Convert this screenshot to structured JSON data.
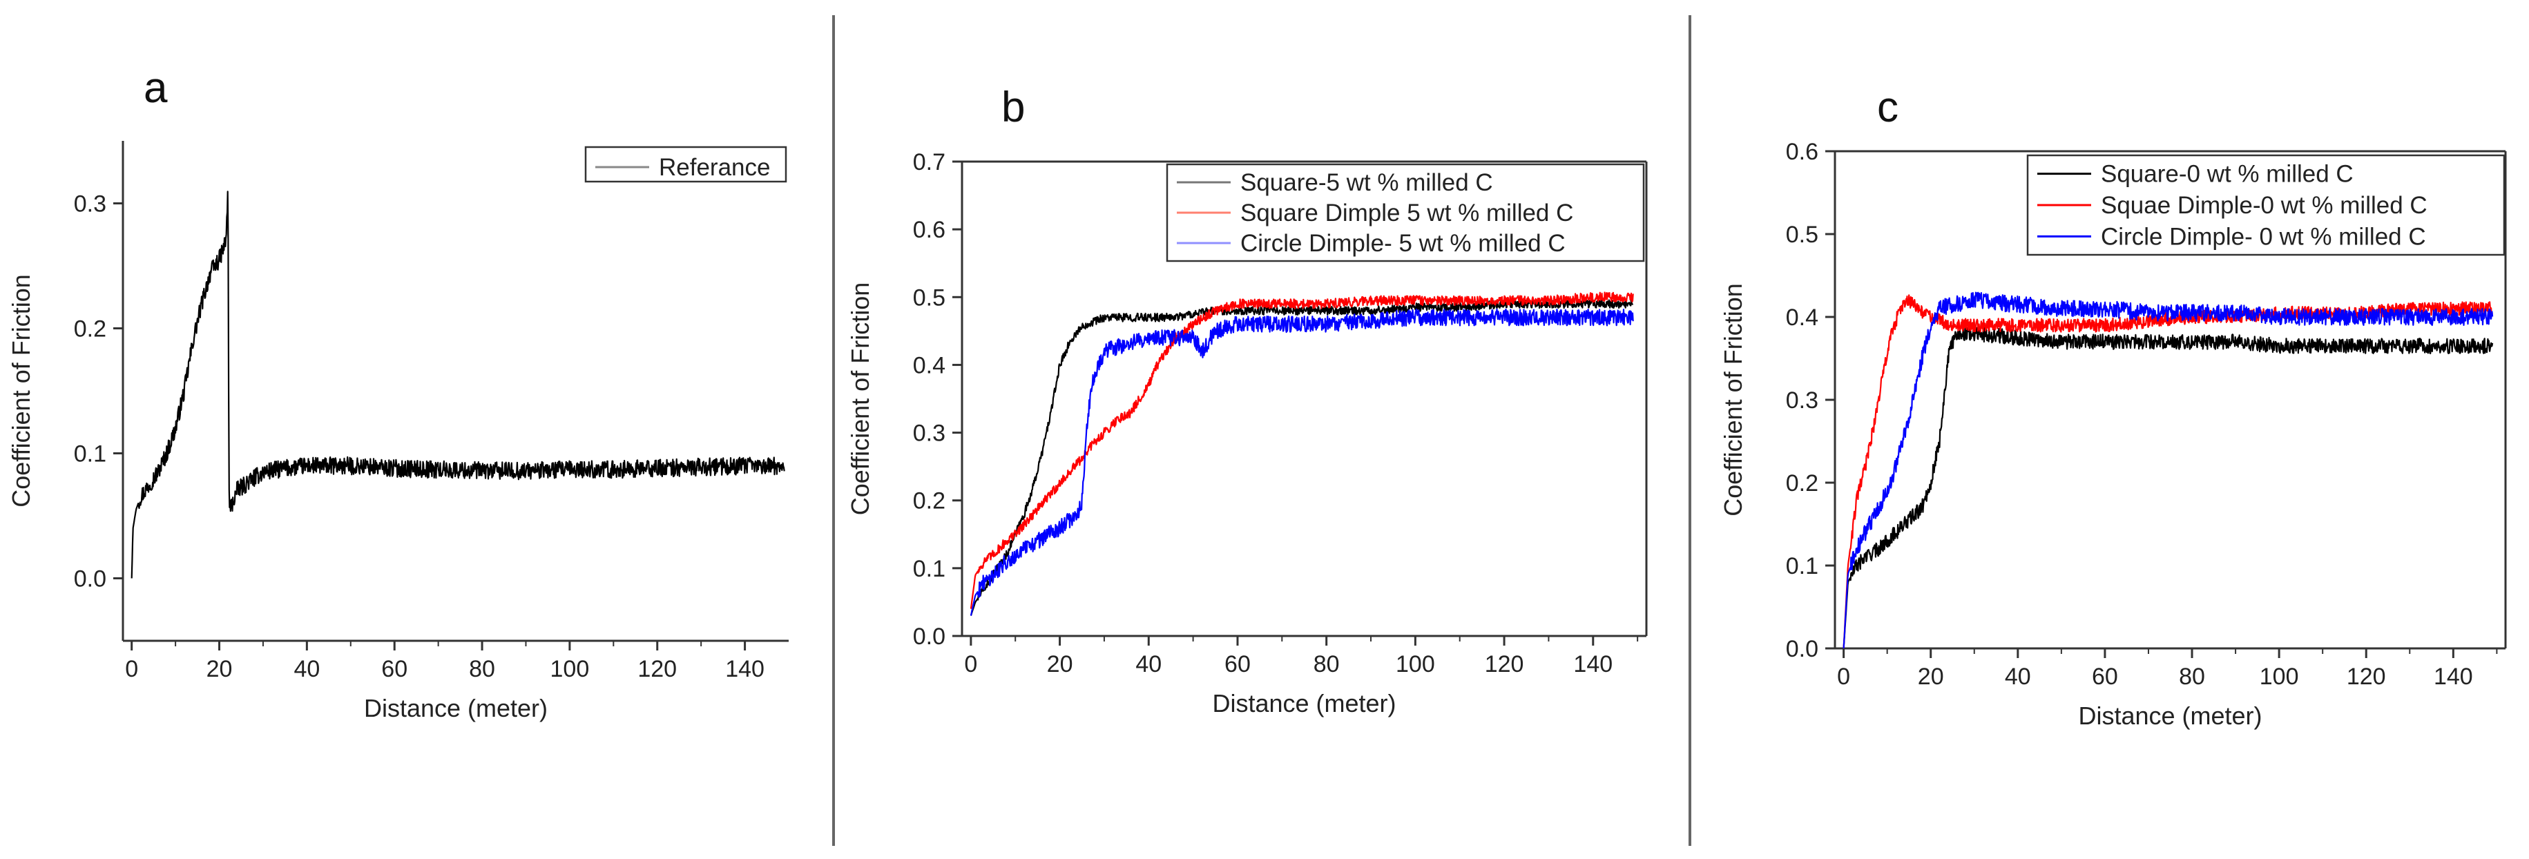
{
  "figure": {
    "panels": [
      {
        "id": "a",
        "letter": "a"
      },
      {
        "id": "b",
        "letter": "b"
      },
      {
        "id": "c",
        "letter": "c"
      }
    ]
  },
  "chart_data": [
    {
      "type": "line",
      "panel": "a",
      "title": "",
      "xlabel": "Distance (meter)",
      "ylabel": "Coefficient of Friction",
      "xlim": [
        -2,
        150
      ],
      "ylim": [
        -0.05,
        0.35
      ],
      "xticks": [
        0,
        20,
        40,
        60,
        80,
        100,
        120,
        140
      ],
      "yticks": [
        0.0,
        0.1,
        0.2,
        0.3
      ],
      "ytick_labels": [
        "0.0",
        "0.1",
        "0.2",
        "0.3"
      ],
      "grid": false,
      "legend_position": "top-right",
      "series": [
        {
          "name": "Referance",
          "color": "#000000",
          "legend_color": "#888888",
          "noise": 0.007,
          "x": [
            0,
            0.3,
            1,
            2,
            4,
            6,
            8,
            10,
            12,
            14,
            16,
            18,
            20,
            21.5,
            22,
            22.2,
            22.5,
            24,
            27,
            30,
            35,
            40,
            50,
            60,
            70,
            80,
            90,
            100,
            110,
            120,
            130,
            140,
            149
          ],
          "values": [
            0.0,
            0.04,
            0.055,
            0.065,
            0.075,
            0.085,
            0.1,
            0.12,
            0.15,
            0.19,
            0.22,
            0.245,
            0.255,
            0.27,
            0.31,
            0.07,
            0.055,
            0.07,
            0.078,
            0.085,
            0.088,
            0.09,
            0.09,
            0.088,
            0.087,
            0.086,
            0.086,
            0.087,
            0.087,
            0.088,
            0.089,
            0.09,
            0.09
          ]
        }
      ]
    },
    {
      "type": "line",
      "panel": "b",
      "title": "",
      "xlabel": "Distance (meter)",
      "ylabel": "Coefficient of Friction",
      "xlim": [
        -2,
        152
      ],
      "ylim": [
        0.0,
        0.7
      ],
      "xticks": [
        0,
        20,
        40,
        60,
        80,
        100,
        120,
        140
      ],
      "yticks": [
        0.0,
        0.1,
        0.2,
        0.3,
        0.4,
        0.5,
        0.6,
        0.7
      ],
      "ytick_labels": [
        "0.0",
        "0.1",
        "0.2",
        "0.3",
        "0.4",
        "0.5",
        "0.6",
        "0.7"
      ],
      "grid": false,
      "legend_position": "top-right",
      "series": [
        {
          "name": "Square-5 wt % milled C",
          "color": "#000000",
          "legend_color": "#777777",
          "noise": 0.006,
          "x": [
            0,
            1,
            3,
            5,
            8,
            10,
            12,
            14,
            16,
            18,
            20,
            22,
            24,
            26,
            28,
            30,
            35,
            40,
            45,
            50,
            55,
            60,
            70,
            80,
            90,
            100,
            110,
            120,
            130,
            140,
            149
          ],
          "values": [
            0.03,
            0.05,
            0.07,
            0.09,
            0.12,
            0.15,
            0.18,
            0.22,
            0.27,
            0.33,
            0.4,
            0.43,
            0.45,
            0.46,
            0.465,
            0.47,
            0.47,
            0.47,
            0.47,
            0.475,
            0.48,
            0.48,
            0.48,
            0.48,
            0.48,
            0.485,
            0.485,
            0.49,
            0.49,
            0.49,
            0.49
          ]
        },
        {
          "name": "Square Dimple 5 wt % milled C",
          "color": "#ff0000",
          "legend_color": "#ff8070",
          "noise": 0.007,
          "x": [
            0,
            1,
            3,
            5,
            8,
            10,
            14,
            18,
            22,
            26,
            27,
            30,
            33,
            36,
            38,
            40,
            42,
            44,
            46,
            50,
            55,
            60,
            70,
            80,
            90,
            100,
            110,
            120,
            130,
            140,
            149
          ],
          "values": [
            0.04,
            0.09,
            0.11,
            0.12,
            0.14,
            0.15,
            0.18,
            0.21,
            0.24,
            0.27,
            0.28,
            0.3,
            0.32,
            0.33,
            0.35,
            0.37,
            0.4,
            0.42,
            0.44,
            0.46,
            0.48,
            0.49,
            0.49,
            0.49,
            0.495,
            0.495,
            0.495,
            0.495,
            0.495,
            0.5,
            0.5
          ]
        },
        {
          "name": "Circle Dimple- 5 wt % milled C",
          "color": "#0000ff",
          "legend_color": "#9090ff",
          "noise": 0.012,
          "x": [
            0,
            1,
            3,
            5,
            8,
            10,
            15,
            20,
            24,
            25,
            26,
            27,
            28,
            30,
            35,
            40,
            45,
            50,
            52,
            55,
            60,
            70,
            80,
            90,
            100,
            110,
            120,
            130,
            140,
            149
          ],
          "values": [
            0.03,
            0.06,
            0.08,
            0.09,
            0.11,
            0.12,
            0.14,
            0.16,
            0.18,
            0.2,
            0.3,
            0.36,
            0.39,
            0.42,
            0.43,
            0.44,
            0.44,
            0.44,
            0.42,
            0.45,
            0.46,
            0.46,
            0.46,
            0.465,
            0.47,
            0.47,
            0.47,
            0.47,
            0.47,
            0.47
          ]
        }
      ]
    },
    {
      "type": "line",
      "panel": "c",
      "title": "",
      "xlabel": "Distance (meter)",
      "ylabel": "Coefficient of Friction",
      "xlim": [
        -2,
        152
      ],
      "ylim": [
        0.0,
        0.6
      ],
      "xticks": [
        0,
        20,
        40,
        60,
        80,
        100,
        120,
        140
      ],
      "yticks": [
        0.0,
        0.1,
        0.2,
        0.3,
        0.4,
        0.5,
        0.6
      ],
      "ytick_labels": [
        "0.0",
        "0.1",
        "0.2",
        "0.3",
        "0.4",
        "0.5",
        "0.6"
      ],
      "grid": false,
      "legend_position": "top-right",
      "series": [
        {
          "name": "Square-0 wt % milled C",
          "color": "#000000",
          "legend_color": "#000000",
          "noise": 0.009,
          "x": [
            0,
            1,
            3,
            5,
            8,
            10,
            14,
            18,
            20,
            22,
            23,
            24,
            25,
            26,
            30,
            40,
            50,
            60,
            70,
            80,
            90,
            100,
            110,
            120,
            130,
            140,
            149
          ],
          "values": [
            0.0,
            0.08,
            0.1,
            0.11,
            0.12,
            0.13,
            0.15,
            0.17,
            0.2,
            0.25,
            0.3,
            0.35,
            0.37,
            0.38,
            0.38,
            0.375,
            0.37,
            0.37,
            0.37,
            0.37,
            0.37,
            0.365,
            0.365,
            0.365,
            0.365,
            0.365,
            0.365
          ]
        },
        {
          "name": "Squae Dimple-0 wt % milled C",
          "color": "#ff0000",
          "legend_color": "#ff0000",
          "noise": 0.008,
          "x": [
            0,
            1,
            2,
            3,
            5,
            7,
            9,
            11,
            13,
            15,
            17,
            20,
            25,
            30,
            40,
            50,
            60,
            70,
            80,
            90,
            100,
            110,
            120,
            130,
            140,
            149
          ],
          "values": [
            0.0,
            0.1,
            0.14,
            0.18,
            0.22,
            0.27,
            0.33,
            0.38,
            0.41,
            0.42,
            0.41,
            0.4,
            0.39,
            0.39,
            0.39,
            0.39,
            0.39,
            0.395,
            0.4,
            0.4,
            0.405,
            0.405,
            0.405,
            0.41,
            0.41,
            0.41
          ]
        },
        {
          "name": "Circle Dimple- 0 wt % milled C",
          "color": "#0000ff",
          "legend_color": "#0000ff",
          "noise": 0.01,
          "x": [
            0,
            1,
            3,
            5,
            8,
            10,
            12,
            14,
            16,
            18,
            20,
            22,
            25,
            30,
            40,
            50,
            60,
            70,
            80,
            90,
            100,
            110,
            120,
            130,
            140,
            149
          ],
          "values": [
            0.0,
            0.09,
            0.12,
            0.14,
            0.17,
            0.19,
            0.22,
            0.26,
            0.3,
            0.35,
            0.39,
            0.41,
            0.415,
            0.42,
            0.415,
            0.41,
            0.41,
            0.405,
            0.405,
            0.405,
            0.4,
            0.4,
            0.4,
            0.4,
            0.4,
            0.4
          ]
        }
      ]
    }
  ]
}
